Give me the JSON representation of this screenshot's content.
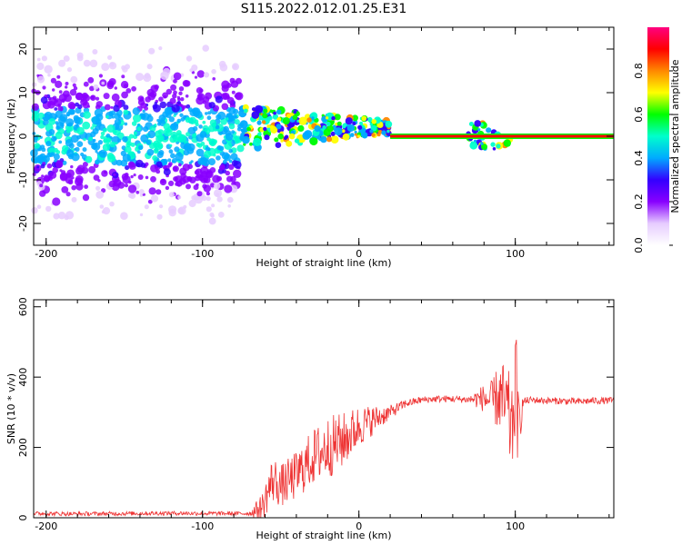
{
  "title": "S115.2022.012.01.25.E31",
  "chart_data": [
    {
      "type": "heatmap",
      "xlabel": "Height of straight line (km)",
      "ylabel": "Frequency (Hz)",
      "xlim": [
        -208,
        163
      ],
      "ylim": [
        -25,
        25
      ],
      "x_ticks": [
        {
          "value": -200,
          "label": "-200"
        },
        {
          "value": -100,
          "label": "-100"
        },
        {
          "value": 0,
          "label": "0"
        },
        {
          "value": 100,
          "label": "100"
        }
      ],
      "y_ticks": [
        {
          "value": 20,
          "label": "20"
        },
        {
          "value": 10,
          "label": "10"
        },
        {
          "value": 0,
          "label": "0"
        },
        {
          "value": -10,
          "label": "-10"
        },
        {
          "value": -20,
          "label": "-20"
        }
      ],
      "colorbar": {
        "label": "Normalized spectral amplitude",
        "range": [
          0,
          1
        ],
        "ticks": [
          {
            "value": 0.0,
            "label": "0.0"
          },
          {
            "value": 0.2,
            "label": "0.2"
          },
          {
            "value": 0.4,
            "label": "0.4"
          },
          {
            "value": 0.6,
            "label": "0.6"
          },
          {
            "value": 0.8,
            "label": "0.8"
          }
        ],
        "colormap": [
          "#ffffff",
          "#e6ccff",
          "#8800ff",
          "#3300ff",
          "#00aaff",
          "#00ffcc",
          "#00ff00",
          "#ffff00",
          "#ff8800",
          "#ff0000",
          "#ff0080"
        ]
      },
      "line_segments": [
        {
          "x_start": 20,
          "x_end": 163,
          "y": 0,
          "value": 0.9
        }
      ],
      "blob_regions": [
        {
          "x_start": -208,
          "x_end": -75,
          "y_center": 0,
          "y_spread": 25,
          "level": "low-mid"
        },
        {
          "x_start": -75,
          "x_end": 20,
          "y_center": 2,
          "y_spread": 5,
          "level": "mid-high"
        },
        {
          "x_start": 70,
          "x_end": 97,
          "y_center": 0,
          "y_spread": 3,
          "level": "mid-high"
        }
      ]
    },
    {
      "type": "line",
      "xlabel": "Height of straight line (km)",
      "ylabel": "SNR (10 * v/v)",
      "xlim": [
        -208,
        163
      ],
      "ylim": [
        0,
        620
      ],
      "line_color": "#ee3333",
      "x_ticks": [
        {
          "value": -200,
          "label": "-200"
        },
        {
          "value": -100,
          "label": "-100"
        },
        {
          "value": 0,
          "label": "0"
        },
        {
          "value": 100,
          "label": "100"
        }
      ],
      "y_ticks": [
        {
          "value": 0,
          "label": "0"
        },
        {
          "value": 200,
          "label": "200"
        },
        {
          "value": 400,
          "label": "400"
        },
        {
          "value": 600,
          "label": "600"
        }
      ],
      "series": [
        {
          "x": [
            -208,
            -180,
            -150,
            -120,
            -90,
            -70,
            -62,
            -55,
            -50,
            -40,
            -30,
            -20,
            -10,
            0,
            10,
            20,
            30,
            40,
            50,
            60,
            70,
            80,
            85,
            90,
            95,
            98,
            100,
            102,
            105,
            110,
            120,
            130,
            140,
            150,
            163
          ],
          "y": [
            12,
            11,
            12,
            13,
            12,
            12,
            30,
            110,
            90,
            120,
            170,
            200,
            220,
            260,
            280,
            300,
            325,
            335,
            338,
            338,
            336,
            340,
            330,
            345,
            300,
            240,
            400,
            250,
            330,
            335,
            333,
            332,
            330,
            333,
            333
          ],
          "noise_amplitude": [
            6,
            6,
            6,
            6,
            6,
            6,
            40,
            70,
            60,
            70,
            80,
            90,
            80,
            60,
            40,
            20,
            12,
            10,
            10,
            10,
            10,
            40,
            60,
            100,
            140,
            120,
            200,
            100,
            12,
            10,
            10,
            10,
            10,
            10,
            10
          ]
        }
      ]
    }
  ]
}
